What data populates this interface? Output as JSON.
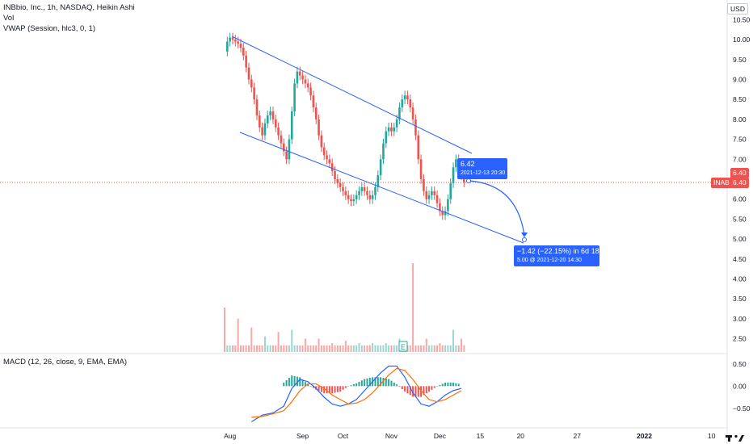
{
  "header": {
    "symbol_line": "INBbio, Inc., 1h, NASDAQ, Heikin Ashi",
    "vol_label": "Vol",
    "vwap_label": "VWAP (Session, hlc3, 0, 1)",
    "currency": "USD"
  },
  "macd": {
    "label": "MACD (12, 26, close, 9, EMA, EMA)"
  },
  "price_tags": {
    "symbol_tag": "INAB",
    "last_price": "6.40",
    "last_price_2": "6.40"
  },
  "annotations": {
    "point_price": "6.42",
    "point_date": "2021-12-13 20:30",
    "projection_change": "−1.42 (−22.15%) in 6d 18h",
    "projection_target": "5.00 @ 2021-12-20  14:30",
    "earnings_marker": "E"
  },
  "colors": {
    "up": "#26a69a",
    "down": "#ef5350",
    "channel": "#2962ff",
    "macd_line": "#2962ff",
    "signal_line": "#ff6d00",
    "hist_up": "#26a69a",
    "hist_down": "#ef5350",
    "last_price_line": "#ef5350"
  },
  "chart_data": [
    {
      "type": "candlestick",
      "title": "INBbio, Inc., 1h, NASDAQ, Heikin Ashi",
      "x_ticks": [
        "Aug",
        "Sep",
        "Oct",
        "Nov",
        "Dec",
        "15",
        "20",
        "27",
        "2022",
        "10"
      ],
      "y_ticks": [
        "10.50",
        "10.00",
        "9.50",
        "9.00",
        "8.50",
        "8.00",
        "7.50",
        "7.00",
        "6.50",
        "6.00",
        "5.50",
        "5.00",
        "4.50",
        "4.00",
        "3.50",
        "3.00",
        "2.50"
      ],
      "ylim": [
        2.25,
        10.75
      ],
      "series": [
        {
          "name": "Heikin Ashi",
          "days": [
            0,
            1,
            2,
            3,
            4,
            5,
            6,
            7,
            8,
            9,
            10,
            11,
            12,
            13,
            14,
            15,
            16,
            17,
            18,
            19,
            20,
            21,
            22,
            23,
            24,
            25,
            26,
            27,
            28,
            29,
            30,
            31,
            32,
            33,
            34,
            35,
            36,
            37,
            38,
            39,
            40,
            41,
            42,
            43,
            44,
            45,
            46,
            47,
            48,
            49,
            50,
            51,
            52,
            53,
            54,
            55,
            56,
            57,
            58,
            59,
            60,
            61,
            62,
            63,
            64,
            65,
            66,
            67,
            68,
            69,
            70,
            71,
            72,
            73,
            74,
            75,
            76,
            77,
            78,
            79,
            80,
            81,
            82,
            83,
            84,
            85,
            86,
            87,
            88,
            89,
            90,
            91,
            92,
            93,
            94,
            95,
            96,
            97,
            98,
            99,
            100,
            101,
            102,
            103,
            104,
            105,
            106,
            107,
            108,
            109,
            110,
            111,
            112,
            113,
            114,
            115,
            116,
            117,
            118,
            119,
            120,
            121,
            122,
            123,
            124,
            125,
            126,
            127,
            128,
            129,
            130,
            131,
            132,
            133,
            134
          ],
          "close": [
            9.7,
            9.95,
            10.05,
            10.0,
            9.95,
            9.9,
            9.8,
            9.6,
            9.3,
            9.0,
            8.8,
            8.5,
            8.1,
            7.8,
            7.6,
            7.9,
            8.1,
            8.2,
            8.0,
            7.8,
            7.6,
            7.4,
            7.2,
            7.0,
            7.5,
            8.2,
            8.9,
            9.2,
            9.1,
            9.0,
            8.9,
            8.8,
            8.6,
            8.3,
            8.0,
            7.6,
            7.3,
            7.1,
            7.0,
            6.9,
            6.7,
            6.5,
            6.4,
            6.3,
            6.2,
            6.1,
            6.0,
            5.95,
            6.0,
            6.1,
            6.2,
            6.3,
            6.2,
            6.1,
            6.0,
            6.1,
            6.3,
            6.6,
            7.0,
            7.4,
            7.7,
            7.8,
            7.7,
            7.8,
            8.0,
            8.3,
            8.5,
            8.6,
            8.5,
            8.3,
            8.0,
            7.6,
            7.0,
            6.5,
            6.2,
            6.0,
            6.1,
            6.2,
            6.1,
            5.9,
            5.7,
            5.6,
            5.7,
            6.0,
            6.4,
            6.8,
            7.0,
            6.9,
            6.6,
            6.42,
            6.4,
            6.4,
            6.4,
            6.4,
            6.4,
            6.4,
            6.4,
            6.4,
            6.4,
            6.4,
            6.4,
            6.4,
            6.4,
            6.4,
            6.4,
            6.4,
            6.4,
            6.4,
            6.4,
            6.4,
            6.4,
            6.4,
            6.4,
            6.4,
            6.4,
            6.4,
            6.4,
            6.4,
            6.4,
            6.4,
            6.4,
            6.4,
            6.4,
            6.4,
            6.4,
            6.4,
            6.4,
            6.4,
            6.4,
            6.4,
            6.4,
            6.4,
            6.4,
            6.4,
            6.4
          ],
          "visible_bars": 90
        },
        {
          "name": "Vol",
          "days": [
            0,
            5,
            10,
            15,
            20,
            25,
            30,
            35,
            40,
            45,
            50,
            55,
            60,
            65,
            70,
            75,
            80,
            85,
            88
          ],
          "values": [
            1.0,
            0.75,
            0.55,
            0.35,
            0.45,
            0.5,
            0.3,
            0.3,
            0.2,
            0.25,
            0.2,
            0.2,
            0.2,
            0.3,
            2.0,
            0.3,
            0.2,
            0.5,
            0.3
          ]
        }
      ]
    },
    {
      "type": "line",
      "title": "MACD (12, 26, close, 9, EMA, EMA)",
      "y_ticks": [
        "0.50",
        "0.00",
        "−0.50"
      ],
      "ylim": [
        -0.9,
        0.55
      ],
      "series": [
        {
          "name": "MACD",
          "days": [
            10,
            14,
            18,
            22,
            25,
            28,
            31,
            34,
            37,
            40,
            43,
            46,
            49,
            52,
            55,
            58,
            61,
            64,
            67,
            70,
            73,
            76,
            79,
            82,
            85,
            88
          ],
          "values": [
            -0.8,
            -0.65,
            -0.6,
            -0.45,
            -0.05,
            0.15,
            0.1,
            -0.05,
            -0.25,
            -0.4,
            -0.45,
            -0.4,
            -0.3,
            -0.1,
            0.1,
            0.3,
            0.45,
            0.45,
            0.2,
            -0.15,
            -0.4,
            -0.45,
            -0.35,
            -0.2,
            -0.1,
            -0.05
          ]
        },
        {
          "name": "Signal",
          "days": [
            10,
            14,
            18,
            22,
            25,
            28,
            31,
            34,
            37,
            40,
            43,
            46,
            49,
            52,
            55,
            58,
            61,
            64,
            67,
            70,
            73,
            76,
            79,
            82,
            85,
            88
          ],
          "values": [
            -0.7,
            -0.68,
            -0.62,
            -0.55,
            -0.35,
            -0.1,
            0.05,
            0.05,
            -0.05,
            -0.2,
            -0.3,
            -0.4,
            -0.38,
            -0.3,
            -0.15,
            0.05,
            0.25,
            0.4,
            0.35,
            0.15,
            -0.1,
            -0.3,
            -0.35,
            -0.3,
            -0.2,
            -0.1
          ]
        }
      ]
    }
  ]
}
